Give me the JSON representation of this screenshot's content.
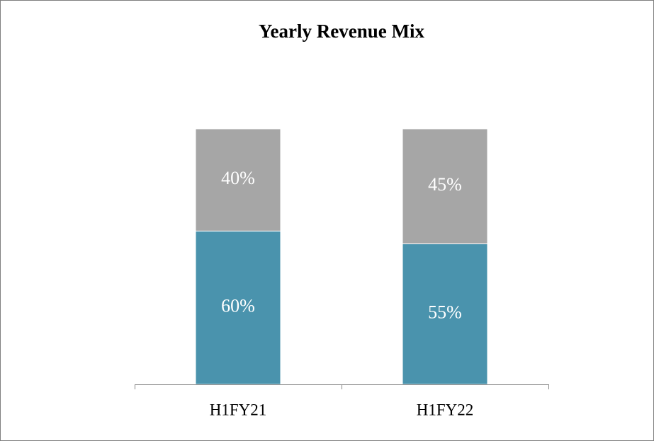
{
  "chart_data": {
    "type": "stacked_bar",
    "title": "Yearly Revenue Mix",
    "categories": [
      "H1FY21",
      "H1FY22"
    ],
    "series": [
      {
        "color": "#4a93ad",
        "values": [
          60,
          55
        ],
        "value_labels": [
          "60%",
          "55%"
        ]
      },
      {
        "color": "#a6a6a6",
        "values": [
          40,
          45
        ],
        "value_labels": [
          "40%",
          "45%"
        ]
      }
    ],
    "ylim": [
      0,
      100
    ]
  }
}
